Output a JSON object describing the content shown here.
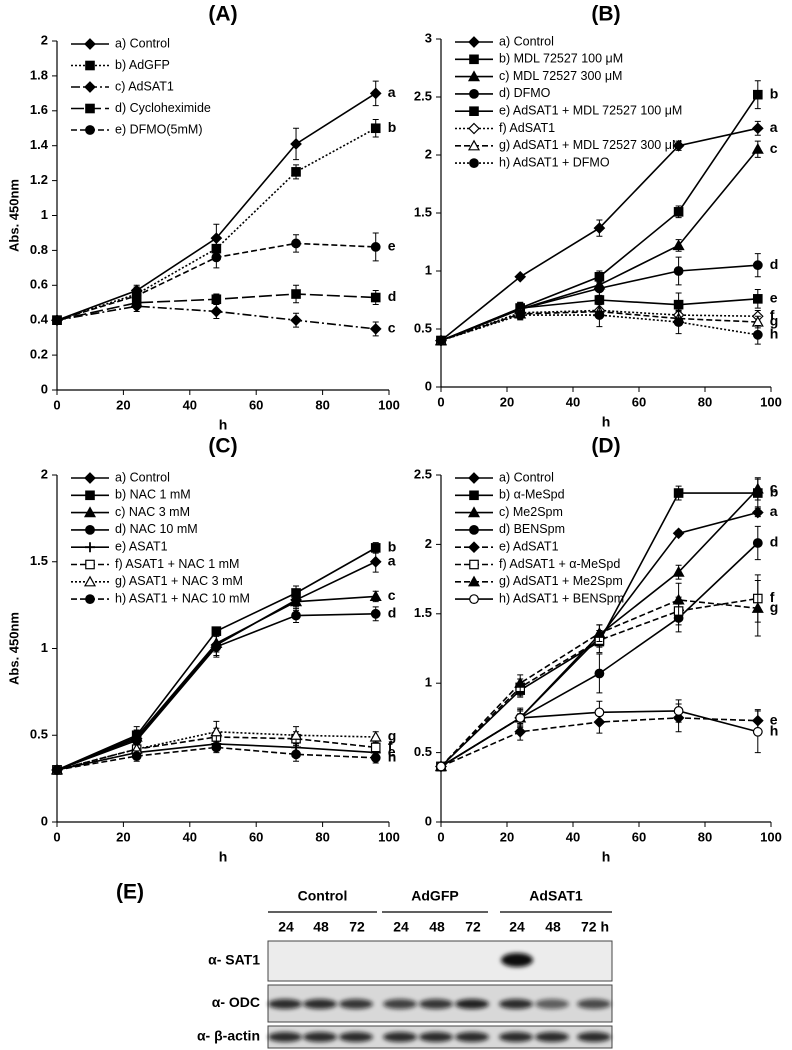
{
  "chart_data": [
    {
      "type": "line",
      "title": "(A)",
      "xlabel": "h",
      "ylabel": "Abs. 450nm",
      "legend": "upper left",
      "x": [
        0,
        24,
        48,
        72,
        96
      ],
      "xlim": [
        0,
        100
      ],
      "xticks": [
        0,
        20,
        40,
        60,
        80,
        100
      ],
      "ylim": [
        0,
        2
      ],
      "yticks": [
        0,
        0.2,
        0.4,
        0.6,
        0.8,
        1,
        1.2,
        1.4,
        1.6,
        1.8,
        2
      ],
      "series": [
        {
          "name": "a) Control",
          "end_label": "a",
          "color": "#000000",
          "marker": "diamond",
          "filled": true,
          "dash": "solid",
          "values": [
            0.4,
            0.57,
            0.87,
            1.41,
            1.7
          ],
          "errors": [
            0,
            0.03,
            0.08,
            0.09,
            0.07
          ]
        },
        {
          "name": "b) AdGFP",
          "end_label": "b",
          "color": "#000000",
          "marker": "square",
          "filled": true,
          "dash": "dotted",
          "values": [
            0.4,
            0.55,
            0.81,
            1.25,
            1.5
          ],
          "errors": [
            0,
            0.03,
            0.06,
            0.04,
            0.05
          ]
        },
        {
          "name": "c) AdSAT1",
          "end_label": "c",
          "color": "#000000",
          "marker": "diamond",
          "filled": true,
          "dash": "dashdot",
          "values": [
            0.4,
            0.48,
            0.45,
            0.4,
            0.35
          ],
          "errors": [
            0,
            0.03,
            0.04,
            0.04,
            0.04
          ]
        },
        {
          "name": "d) Cycloheximide",
          "end_label": "d",
          "color": "#000000",
          "marker": "square",
          "filled": true,
          "dash": "longdash",
          "values": [
            0.4,
            0.5,
            0.52,
            0.55,
            0.53
          ],
          "errors": [
            0,
            0.03,
            0.03,
            0.05,
            0.04
          ]
        },
        {
          "name": "e) DFMO(5mM)",
          "end_label": "e",
          "color": "#000000",
          "marker": "circle",
          "filled": true,
          "dash": "dashed",
          "values": [
            0.4,
            0.54,
            0.76,
            0.84,
            0.82
          ],
          "errors": [
            0,
            0.05,
            0.06,
            0.05,
            0.08
          ]
        }
      ]
    },
    {
      "type": "line",
      "title": "(B)",
      "xlabel": "h",
      "legend": "upper left",
      "x": [
        0,
        24,
        48,
        72,
        96
      ],
      "xlim": [
        0,
        100
      ],
      "xticks": [
        0,
        20,
        40,
        60,
        80,
        100
      ],
      "ylim": [
        0,
        3
      ],
      "yticks": [
        0,
        0.5,
        1,
        1.5,
        2,
        2.5,
        3
      ],
      "series": [
        {
          "name": "a) Control",
          "end_label": "a",
          "color": "#000000",
          "marker": "diamond",
          "filled": true,
          "dash": "solid",
          "values": [
            0.4,
            0.95,
            1.37,
            2.08,
            2.23
          ],
          "errors": [
            0,
            0.02,
            0.07,
            0.04,
            0.06
          ]
        },
        {
          "name": "b) MDL 72527 100 μM",
          "end_label": "b",
          "color": "#000000",
          "marker": "square",
          "filled": true,
          "dash": "solid",
          "values": [
            0.4,
            0.68,
            0.95,
            1.51,
            2.52
          ],
          "errors": [
            0,
            0.05,
            0.05,
            0.05,
            0.12
          ]
        },
        {
          "name": "c) MDL 72527 300 μM",
          "end_label": "c",
          "color": "#000000",
          "marker": "triangle",
          "filled": true,
          "dash": "solid",
          "values": [
            0.4,
            0.67,
            0.88,
            1.22,
            2.05
          ],
          "errors": [
            0,
            0.05,
            0.05,
            0.05,
            0.07
          ]
        },
        {
          "name": "d) DFMO",
          "end_label": "d",
          "color": "#000000",
          "marker": "circle",
          "filled": true,
          "dash": "solid",
          "values": [
            0.4,
            0.67,
            0.85,
            1.0,
            1.05
          ],
          "errors": [
            0,
            0.05,
            0.06,
            0.12,
            0.1
          ]
        },
        {
          "name": "e) AdSAT1  + MDL 72527 100 μM",
          "end_label": "e",
          "color": "#000000",
          "marker": "square",
          "filled": true,
          "dash": "solid",
          "values": [
            0.4,
            0.68,
            0.75,
            0.71,
            0.76
          ],
          "errors": [
            0,
            0.05,
            0.08,
            0.1,
            0.08
          ]
        },
        {
          "name": "f) AdSAT1",
          "end_label": "f",
          "color": "#000000",
          "marker": "diamond",
          "filled": false,
          "dash": "dotted",
          "values": [
            0.4,
            0.64,
            0.66,
            0.62,
            0.61
          ],
          "errors": [
            0,
            0.05,
            0.06,
            0.05,
            0.05
          ]
        },
        {
          "name": "g) AdSAT1  + MDL 72527 300 μM",
          "end_label": "g",
          "color": "#000000",
          "marker": "triangle",
          "filled": false,
          "dash": "dashed",
          "values": [
            0.4,
            0.63,
            0.65,
            0.59,
            0.56
          ],
          "errors": [
            0,
            0.05,
            0.06,
            0.06,
            0.05
          ]
        },
        {
          "name": "h) AdSAT1 + DFMO",
          "end_label": "h",
          "color": "#000000",
          "marker": "circle",
          "filled": true,
          "dash": "dotted",
          "values": [
            0.4,
            0.62,
            0.62,
            0.56,
            0.45
          ],
          "errors": [
            0,
            0.04,
            0.1,
            0.1,
            0.08
          ]
        }
      ]
    },
    {
      "type": "line",
      "title": "(C)",
      "xlabel": "h",
      "ylabel": "Abs. 450nm",
      "legend": "upper left",
      "x": [
        0,
        24,
        48,
        72,
        96
      ],
      "xlim": [
        0,
        100
      ],
      "xticks": [
        0,
        20,
        40,
        60,
        80,
        100
      ],
      "ylim": [
        0,
        2
      ],
      "yticks": [
        0,
        0.5,
        1,
        1.5,
        2
      ],
      "series": [
        {
          "name": "a) Control",
          "end_label": "a",
          "color": "#000000",
          "marker": "diamond",
          "filled": true,
          "dash": "solid",
          "values": [
            0.3,
            0.48,
            1.02,
            1.28,
            1.5
          ],
          "errors": [
            0,
            0.04,
            0.06,
            0.04,
            0.06
          ]
        },
        {
          "name": "b) NAC 1 mM",
          "end_label": "b",
          "color": "#000000",
          "marker": "square",
          "filled": true,
          "dash": "solid",
          "values": [
            0.3,
            0.5,
            1.1,
            1.32,
            1.58
          ],
          "errors": [
            0,
            0.05,
            0.02,
            0.04,
            0.03
          ]
        },
        {
          "name": "c) NAC 3 mM",
          "end_label": "c",
          "color": "#000000",
          "marker": "triangle",
          "filled": true,
          "dash": "solid",
          "values": [
            0.3,
            0.49,
            1.03,
            1.27,
            1.3
          ],
          "errors": [
            0,
            0.04,
            0.05,
            0.05,
            0.03
          ]
        },
        {
          "name": "d) NAC 10 mM",
          "end_label": "d",
          "color": "#000000",
          "marker": "circle",
          "filled": true,
          "dash": "solid",
          "values": [
            0.3,
            0.47,
            1.01,
            1.19,
            1.2
          ],
          "errors": [
            0,
            0.04,
            0.06,
            0.04,
            0.04
          ]
        },
        {
          "name": "e) ASAT1",
          "end_label": "e",
          "color": "#000000",
          "marker": "plus",
          "filled": true,
          "dash": "solid",
          "values": [
            0.3,
            0.4,
            0.45,
            0.43,
            0.4
          ],
          "errors": [
            0,
            0.03,
            0.04,
            0.03,
            0.03
          ]
        },
        {
          "name": "f) ASAT1 + NAC 1 mM",
          "end_label": "f",
          "color": "#000000",
          "marker": "square",
          "filled": false,
          "dash": "dashed",
          "values": [
            0.3,
            0.42,
            0.49,
            0.48,
            0.43
          ],
          "errors": [
            0,
            0.03,
            0.05,
            0.04,
            0.04
          ]
        },
        {
          "name": "g) ASAT1 + NAC 3 mM",
          "end_label": "g",
          "color": "#000000",
          "marker": "triangle",
          "filled": false,
          "dash": "dotted",
          "values": [
            0.3,
            0.42,
            0.52,
            0.5,
            0.49
          ],
          "errors": [
            0,
            0.03,
            0.06,
            0.05,
            0.03
          ]
        },
        {
          "name": "h) ASAT1 + NAC 10 mM",
          "end_label": "h",
          "color": "#000000",
          "marker": "circle",
          "filled": true,
          "dash": "dashed",
          "values": [
            0.3,
            0.38,
            0.43,
            0.39,
            0.37
          ],
          "errors": [
            0,
            0.03,
            0.03,
            0.04,
            0.03
          ]
        }
      ]
    },
    {
      "type": "line",
      "title": "(D)",
      "xlabel": "h",
      "legend": "upper left",
      "x": [
        0,
        24,
        48,
        72,
        96
      ],
      "xlim": [
        0,
        100
      ],
      "xticks": [
        0,
        20,
        40,
        60,
        80,
        100
      ],
      "ylim": [
        0,
        2.5
      ],
      "yticks": [
        0,
        0.5,
        1,
        1.5,
        2,
        2.5
      ],
      "series": [
        {
          "name": "a) Control",
          "end_label": "a",
          "color": "#000000",
          "marker": "diamond",
          "filled": true,
          "dash": "solid",
          "values": [
            0.4,
            0.75,
            1.33,
            2.08,
            2.23
          ],
          "errors": [
            0,
            0.03,
            0.05,
            0.02,
            0.03
          ]
        },
        {
          "name": " b) α-MeSpd",
          "end_label": "b",
          "color": "#000000",
          "marker": "square",
          "filled": true,
          "dash": "solid",
          "values": [
            0.4,
            0.95,
            1.3,
            2.37,
            2.37
          ],
          "errors": [
            0,
            0.05,
            0.08,
            0.05,
            0.1
          ]
        },
        {
          "name": "c)  Me2Spm",
          "end_label": "c",
          "color": "#000000",
          "marker": "triangle",
          "filled": true,
          "dash": "solid",
          "values": [
            0.4,
            0.75,
            1.35,
            1.8,
            2.4
          ],
          "errors": [
            0,
            0.05,
            0.07,
            0.05,
            0.08
          ]
        },
        {
          "name": "d) BENSpm",
          "end_label": "d",
          "color": "#000000",
          "marker": "circle",
          "filled": true,
          "dash": "solid",
          "values": [
            0.4,
            0.75,
            1.07,
            1.47,
            2.01
          ],
          "errors": [
            0,
            0.06,
            0.14,
            0.1,
            0.12
          ]
        },
        {
          "name": "e) AdSAT1",
          "end_label": "e",
          "color": "#000000",
          "marker": "diamond",
          "filled": true,
          "dash": "dashed",
          "values": [
            0.4,
            0.65,
            0.72,
            0.75,
            0.73
          ],
          "errors": [
            0,
            0.06,
            0.08,
            0.1,
            0.08
          ]
        },
        {
          "name": "f) AdSAT1 + α-MeSpd",
          "end_label": "f",
          "color": "#000000",
          "marker": "square",
          "filled": false,
          "dash": "dashed",
          "values": [
            0.4,
            0.97,
            1.31,
            1.52,
            1.61
          ],
          "errors": [
            0,
            0.06,
            0.05,
            0.1,
            0.17
          ]
        },
        {
          "name": "g) AdSAT1  + Me2Spm",
          "end_label": "g",
          "color": "#000000",
          "marker": "triangle",
          "filled": true,
          "dash": "dashed",
          "values": [
            0.4,
            1.0,
            1.36,
            1.6,
            1.54
          ],
          "errors": [
            0,
            0.06,
            0.06,
            0.12,
            0.2
          ]
        },
        {
          "name": "h) AdSAT1 + BENSpm",
          "end_label": "h",
          "color": "#000000",
          "marker": "circle",
          "filled": false,
          "dash": "solid",
          "values": [
            0.4,
            0.75,
            0.79,
            0.8,
            0.65
          ],
          "errors": [
            0,
            0.07,
            0.08,
            0.08,
            0.15
          ]
        }
      ]
    }
  ],
  "blot": {
    "title": "(E)",
    "groups": [
      "Control",
      "AdGFP",
      "AdSAT1"
    ],
    "lanes": [
      "24",
      "48",
      "72",
      "24",
      "48",
      "72",
      "24",
      "48",
      "72 h"
    ],
    "rows": [
      "α- SAT1",
      "α- ODC",
      "α- β-actin"
    ]
  }
}
